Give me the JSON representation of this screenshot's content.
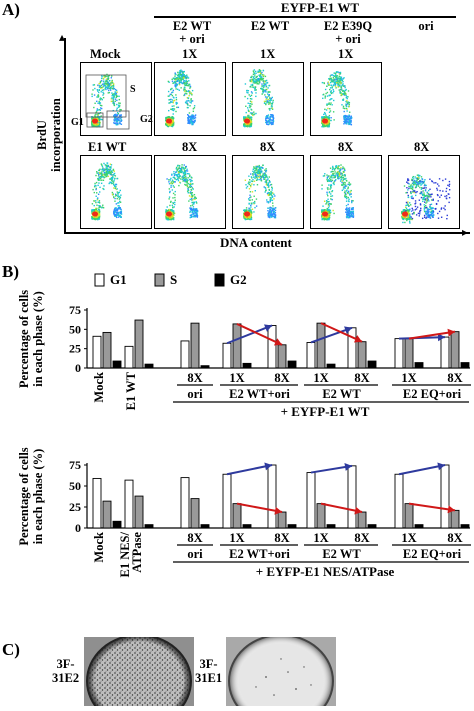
{
  "panel_a": {
    "letter": "A)",
    "group_header": "EYFP-E1 WT",
    "col_headers": [
      "E2 WT\n+ ori",
      "E2 WT",
      "E2 E39Q\n+ ori",
      "ori"
    ],
    "row1": {
      "labels": [
        "Mock",
        "1X",
        "1X",
        "1X"
      ]
    },
    "row2": {
      "labels": [
        "E1 WT",
        "8X",
        "8X",
        "8X",
        "8X"
      ]
    },
    "gates": {
      "s": "S",
      "g1": "G1",
      "g2": "G2"
    },
    "y_axis": "BrdU\nincorporation",
    "x_axis": "DNA content"
  },
  "panel_b": {
    "letter": "B)",
    "legend": [
      "G1",
      "S",
      "G2"
    ],
    "colors": {
      "g1": "#ffffff",
      "s": "#9a9a9a",
      "g2": "#000000",
      "blue_arrow": "#2e3a9e",
      "red_arrow": "#d01818"
    },
    "y_axis": "Percentage of cells\nin each phase (%)",
    "ticks": [
      "0",
      "25",
      "50",
      "75"
    ],
    "top": {
      "single_labels": [
        "Mock",
        "E1 WT"
      ],
      "ori_label": "ori",
      "ori_count": "8X",
      "group_counts": [
        "1X",
        "8X"
      ],
      "group_labels": [
        "E2 WT+ori",
        "E2 WT",
        "E2 EQ+ori"
      ],
      "footer": "+ EYFP-E1 WT"
    },
    "bottom": {
      "single_labels": [
        "Mock",
        "E1 NES/\nATPase"
      ],
      "ori_label": "ori",
      "ori_count": "8X",
      "group_counts": [
        "1X",
        "8X"
      ],
      "group_labels": [
        "E2 WT+ori",
        "E2 WT",
        "E2 EQ+ori"
      ],
      "footer": "+ EYFP-E1 NES/ATPase"
    }
  },
  "chart_data": [
    {
      "type": "bar",
      "title": "",
      "ylabel": "Percentage of cells in each phase (%)",
      "ylim": [
        0,
        75
      ],
      "categories": [
        "Mock",
        "E1 WT",
        "ori 8X",
        "E2 WT+ori 1X",
        "E2 WT+ori 8X",
        "E2 WT 1X",
        "E2 WT 8X",
        "E2 EQ+ori 1X",
        "E2 EQ+ori 8X"
      ],
      "series": [
        {
          "name": "G1",
          "values": [
            41,
            28,
            35,
            32,
            55,
            33,
            52,
            38,
            40
          ]
        },
        {
          "name": "S",
          "values": [
            46,
            62,
            58,
            57,
            30,
            58,
            34,
            38,
            47
          ]
        },
        {
          "name": "G2",
          "values": [
            9,
            5,
            3,
            6,
            9,
            5,
            9,
            7,
            7
          ]
        }
      ]
    },
    {
      "type": "bar",
      "title": "",
      "ylabel": "Percentage of cells in each phase (%)",
      "ylim": [
        0,
        75
      ],
      "categories": [
        "Mock",
        "E1 NES/ATPase",
        "ori 8X",
        "E2 WT+ori 1X",
        "E2 WT+ori 8X",
        "E2 WT 1X",
        "E2 WT 8X",
        "E2 EQ+ori 1X",
        "E2 EQ+ori 8X"
      ],
      "series": [
        {
          "name": "G1",
          "values": [
            59,
            57,
            60,
            64,
            75,
            66,
            74,
            64,
            75
          ]
        },
        {
          "name": "S",
          "values": [
            32,
            38,
            35,
            29,
            19,
            29,
            19,
            29,
            21
          ]
        },
        {
          "name": "G2",
          "values": [
            8,
            4,
            4,
            4,
            4,
            4,
            4,
            4,
            4
          ]
        }
      ]
    }
  ],
  "panel_c": {
    "letter": "C)",
    "left_label": "3F-\n31E2",
    "right_label": "3F-\n31E1"
  }
}
